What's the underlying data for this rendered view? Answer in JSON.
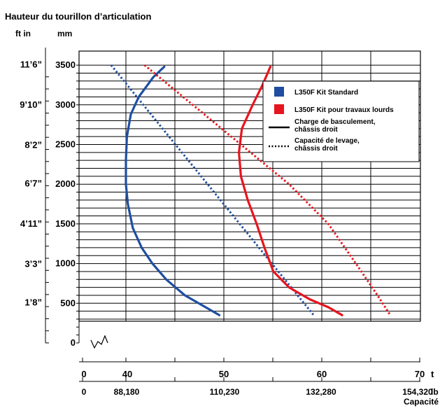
{
  "chart_data": {
    "type": "line",
    "title": "Hauteur du tourillon d’articulation",
    "y_unit_imperial": "ft in",
    "y_unit_metric": "mm",
    "ylim": [
      0,
      3500
    ],
    "y_ticks_mm": [
      "0",
      "500",
      "1000",
      "1500",
      "2000",
      "2500",
      "3000",
      "3500"
    ],
    "y_ticks_ft": [
      {
        "label": "1’8”",
        "mm": 508
      },
      {
        "label": "3’3”",
        "mm": 991
      },
      {
        "label": "4’11”",
        "mm": 1499
      },
      {
        "label": "6’7”",
        "mm": 2007
      },
      {
        "label": "8’2”",
        "mm": 2489
      },
      {
        "label": "9’10”",
        "mm": 2997
      },
      {
        "label": "11’6”",
        "mm": 3505
      }
    ],
    "xlim": [
      35,
      70
    ],
    "x_ticks_t": [
      "0",
      "40",
      "50",
      "60",
      "70"
    ],
    "x_unit_t": "t",
    "x_ticks_lb": [
      "0",
      "88,180",
      "110,230",
      "132,280",
      "154,320"
    ],
    "x_unit_lb": "lb",
    "xlabel": "Capacité",
    "series": [
      {
        "name": "L350F Kit Standard",
        "color": "#1f4ea0",
        "style": "solid",
        "points": [
          [
            43.9,
            3480
          ],
          [
            42.8,
            3350
          ],
          [
            41.3,
            3100
          ],
          [
            40.5,
            2880
          ],
          [
            40.1,
            2600
          ],
          [
            40.0,
            2300
          ],
          [
            40.0,
            2000
          ],
          [
            40.2,
            1750
          ],
          [
            40.7,
            1450
          ],
          [
            41.6,
            1200
          ],
          [
            42.7,
            1000
          ],
          [
            44.1,
            800
          ],
          [
            46.0,
            600
          ],
          [
            49.5,
            350
          ]
        ]
      },
      {
        "name": "L350F Kit Standard",
        "color": "#1f4ea0",
        "style": "dotted",
        "points": [
          [
            38.5,
            3500
          ],
          [
            59.1,
            350
          ]
        ]
      },
      {
        "name": "L350F Kit pour travaux lourds",
        "color": "#e8141d",
        "style": "solid",
        "points": [
          [
            54.7,
            3480
          ],
          [
            53.9,
            3250
          ],
          [
            52.9,
            3000
          ],
          [
            51.8,
            2700
          ],
          [
            51.5,
            2400
          ],
          [
            51.7,
            2100
          ],
          [
            52.4,
            1800
          ],
          [
            53.3,
            1500
          ],
          [
            54.1,
            1200
          ],
          [
            55.0,
            900
          ],
          [
            56.6,
            700
          ],
          [
            58.7,
            550
          ],
          [
            60.6,
            450
          ],
          [
            62.0,
            350
          ]
        ]
      },
      {
        "name": "L350F Kit pour travaux lourds",
        "color": "#e8141d",
        "style": "dotted",
        "points": [
          [
            41.9,
            3500
          ],
          [
            56.6,
            2000
          ],
          [
            60.6,
            1500
          ],
          [
            63.4,
            1000
          ],
          [
            65.6,
            600
          ],
          [
            66.9,
            350
          ]
        ]
      }
    ],
    "legend": {
      "placement": "top-right",
      "entries": [
        {
          "label": "L350F Kit Standard",
          "kind": "swatch",
          "color": "#1f4ea0"
        },
        {
          "label": "L350F Kit pour travaux lourds",
          "kind": "swatch",
          "color": "#e8141d"
        },
        {
          "label": "Charge de basculement, châssis droit",
          "kind": "line",
          "style": "solid"
        },
        {
          "label": "Capacité de levage, châssis droit",
          "kind": "line",
          "style": "dotted"
        }
      ]
    },
    "grid": true
  }
}
